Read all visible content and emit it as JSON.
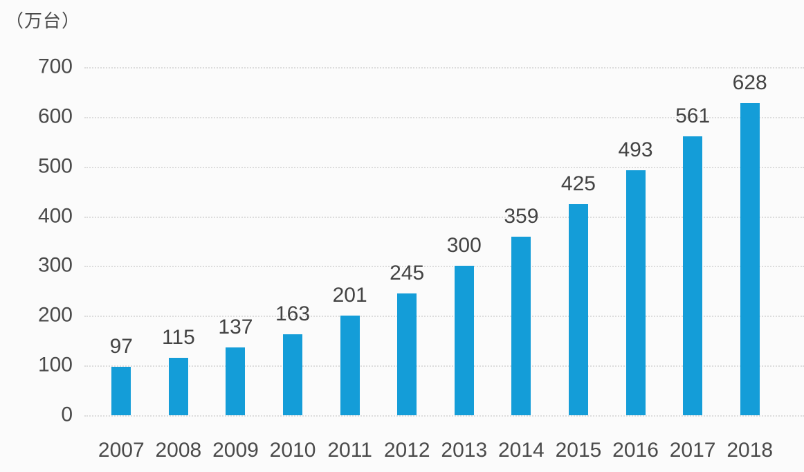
{
  "colors": {
    "bar": "#149dd8",
    "grid": "#dcdcdc",
    "text": "#4a4a4a",
    "value_label_text": "#434343",
    "background": "#fbfbfb"
  },
  "chart_data": {
    "type": "bar",
    "title": "",
    "unit": "（万台）",
    "xlabel": "",
    "ylabel": "（万台）",
    "categories": [
      "2007",
      "2008",
      "2009",
      "2010",
      "2011",
      "2012",
      "2013",
      "2014",
      "2015",
      "2016",
      "2017",
      "2018"
    ],
    "values": [
      97,
      115,
      137,
      163,
      201,
      245,
      300,
      359,
      425,
      493,
      561,
      628
    ],
    "ylim": [
      0,
      700
    ],
    "yticks": [
      0,
      100,
      200,
      300,
      400,
      500,
      600,
      700
    ],
    "grid": "horizontal-dotted",
    "legend": "none",
    "data_labels": true
  }
}
